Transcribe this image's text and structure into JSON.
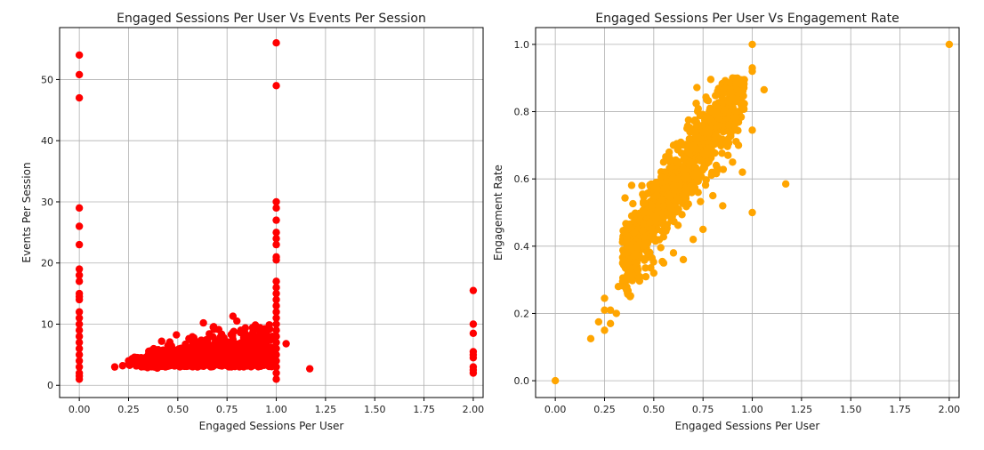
{
  "chart_data": [
    {
      "type": "scatter",
      "title": "Engaged Sessions Per User Vs Events Per Session",
      "xlabel": "Engaged Sessions Per User",
      "ylabel": "Events Per Session",
      "xlim": [
        -0.1,
        2.05
      ],
      "ylim": [
        -2,
        58.5
      ],
      "xticks": [
        0.0,
        0.25,
        0.5,
        0.75,
        1.0,
        1.25,
        1.5,
        1.75,
        2.0
      ],
      "xtick_labels": [
        "0.00",
        "0.25",
        "0.50",
        "0.75",
        "1.00",
        "1.25",
        "1.50",
        "1.75",
        "2.00"
      ],
      "yticks": [
        0,
        10,
        20,
        30,
        40,
        50
      ],
      "ytick_labels": [
        "0",
        "10",
        "20",
        "30",
        "40",
        "50"
      ],
      "grid": true,
      "color": "#ff0000",
      "points": [
        [
          0,
          54.0
        ],
        [
          0,
          50.8
        ],
        [
          0,
          47.0
        ],
        [
          0,
          29.0
        ],
        [
          0,
          26.0
        ],
        [
          0,
          23.0
        ],
        [
          0,
          19.0
        ],
        [
          0,
          18.0
        ],
        [
          0,
          17.0
        ],
        [
          0,
          15.0
        ],
        [
          0,
          14.5
        ],
        [
          0,
          14.0
        ],
        [
          0,
          12.0
        ],
        [
          0,
          11.0
        ],
        [
          0,
          10.0
        ],
        [
          0,
          9.0
        ],
        [
          0,
          8.0
        ],
        [
          0,
          7.0
        ],
        [
          0,
          6.0
        ],
        [
          0,
          5.0
        ],
        [
          0,
          4.0
        ],
        [
          0,
          3.0
        ],
        [
          0,
          2.0
        ],
        [
          0,
          1.5
        ],
        [
          0,
          1.0
        ],
        [
          1,
          56.0
        ],
        [
          1,
          49.0
        ],
        [
          1,
          30.0
        ],
        [
          1,
          29.0
        ],
        [
          1,
          27.0
        ],
        [
          1,
          25.0
        ],
        [
          1,
          24.0
        ],
        [
          1,
          23.0
        ],
        [
          1,
          21.0
        ],
        [
          1,
          20.5
        ],
        [
          1,
          17.0
        ],
        [
          1,
          16.0
        ],
        [
          1,
          15.0
        ],
        [
          1,
          14.0
        ],
        [
          1,
          13.0
        ],
        [
          1,
          12.0
        ],
        [
          1,
          11.0
        ],
        [
          1,
          10.0
        ],
        [
          1,
          9.0
        ],
        [
          1,
          8.0
        ],
        [
          1,
          7.0
        ],
        [
          1,
          6.0
        ],
        [
          1,
          5.0
        ],
        [
          1,
          4.0
        ],
        [
          1,
          3.0
        ],
        [
          1,
          2.0
        ],
        [
          1,
          1.0
        ],
        [
          2,
          15.5
        ],
        [
          2,
          10.0
        ],
        [
          2,
          8.5
        ],
        [
          2,
          5.5
        ],
        [
          2,
          5.0
        ],
        [
          2,
          4.5
        ],
        [
          2,
          3.0
        ],
        [
          2,
          2.5
        ],
        [
          2,
          2.0
        ],
        [
          0.18,
          3.0
        ],
        [
          0.22,
          3.2
        ],
        [
          0.25,
          4.0
        ],
        [
          0.28,
          3.5
        ],
        [
          0.3,
          4.5
        ],
        [
          0.35,
          5.0
        ],
        [
          0.38,
          3.0
        ],
        [
          0.42,
          4.0
        ],
        [
          0.45,
          6.5
        ],
        [
          0.48,
          3.5
        ],
        [
          0.5,
          5.5
        ],
        [
          0.55,
          4.0
        ],
        [
          0.58,
          6.0
        ],
        [
          0.6,
          3.0
        ],
        [
          0.63,
          10.2
        ],
        [
          0.65,
          7.5
        ],
        [
          0.68,
          9.5
        ],
        [
          0.7,
          5.0
        ],
        [
          0.72,
          8.0
        ],
        [
          0.75,
          4.0
        ],
        [
          0.78,
          11.3
        ],
        [
          0.8,
          10.5
        ],
        [
          0.82,
          9.0
        ],
        [
          0.85,
          7.0
        ],
        [
          0.88,
          8.5
        ],
        [
          0.9,
          6.0
        ],
        [
          0.93,
          9.0
        ],
        [
          0.95,
          5.0
        ],
        [
          0.98,
          8.0
        ],
        [
          1.05,
          6.8
        ],
        [
          1.17,
          2.7
        ]
      ],
      "dense_cluster": {
        "note": "dense band of points",
        "x_range": [
          0.35,
          0.98
        ],
        "y_range": [
          2.5,
          7.5
        ],
        "peak_y_range": [
          3.0,
          10.0
        ]
      }
    },
    {
      "type": "scatter",
      "title": "Engaged Sessions Per User Vs Engagement Rate",
      "xlabel": "Engaged Sessions Per User",
      "ylabel": "Engagement Rate",
      "xlim": [
        -0.1,
        2.05
      ],
      "ylim": [
        -0.05,
        1.05
      ],
      "xticks": [
        0.0,
        0.25,
        0.5,
        0.75,
        1.0,
        1.25,
        1.5,
        1.75,
        2.0
      ],
      "xtick_labels": [
        "0.00",
        "0.25",
        "0.50",
        "0.75",
        "1.00",
        "1.25",
        "1.50",
        "1.75",
        "2.00"
      ],
      "yticks": [
        0.0,
        0.2,
        0.4,
        0.6,
        0.8,
        1.0
      ],
      "ytick_labels": [
        "0.0",
        "0.2",
        "0.4",
        "0.6",
        "0.8",
        "1.0"
      ],
      "grid": true,
      "color": "#ffa500",
      "points": [
        [
          0,
          0.0
        ],
        [
          2.0,
          1.0
        ],
        [
          1.0,
          1.0
        ],
        [
          1.0,
          0.92
        ],
        [
          1.0,
          0.93
        ],
        [
          1.06,
          0.865
        ],
        [
          1.0,
          0.745
        ],
        [
          1.0,
          0.5
        ],
        [
          1.17,
          0.585
        ],
        [
          0.18,
          0.125
        ],
        [
          0.22,
          0.175
        ],
        [
          0.25,
          0.15
        ],
        [
          0.25,
          0.21
        ],
        [
          0.25,
          0.245
        ],
        [
          0.28,
          0.17
        ],
        [
          0.28,
          0.21
        ],
        [
          0.31,
          0.2
        ],
        [
          0.32,
          0.28
        ],
        [
          0.35,
          0.3
        ],
        [
          0.38,
          0.25
        ],
        [
          0.4,
          0.37
        ],
        [
          0.42,
          0.33
        ],
        [
          0.45,
          0.4
        ],
        [
          0.48,
          0.47
        ],
        [
          0.5,
          0.44
        ],
        [
          0.52,
          0.5
        ],
        [
          0.55,
          0.52
        ],
        [
          0.58,
          0.55
        ],
        [
          0.6,
          0.58
        ],
        [
          0.62,
          0.6
        ],
        [
          0.65,
          0.63
        ],
        [
          0.68,
          0.68
        ],
        [
          0.7,
          0.7
        ],
        [
          0.72,
          0.72
        ],
        [
          0.75,
          0.74
        ],
        [
          0.78,
          0.78
        ],
        [
          0.8,
          0.8
        ],
        [
          0.82,
          0.82
        ],
        [
          0.85,
          0.84
        ],
        [
          0.88,
          0.83
        ],
        [
          0.9,
          0.9
        ],
        [
          0.92,
          0.89
        ],
        [
          0.95,
          0.88
        ],
        [
          0.8,
          0.55
        ],
        [
          0.85,
          0.52
        ],
        [
          0.75,
          0.45
        ],
        [
          0.7,
          0.42
        ],
        [
          0.65,
          0.36
        ],
        [
          0.6,
          0.38
        ],
        [
          0.55,
          0.35
        ],
        [
          0.5,
          0.32
        ],
        [
          0.9,
          0.65
        ],
        [
          0.93,
          0.7
        ],
        [
          0.95,
          0.62
        ],
        [
          0.6,
          0.7
        ],
        [
          0.55,
          0.65
        ],
        [
          0.5,
          0.58
        ],
        [
          0.45,
          0.5
        ],
        [
          0.4,
          0.44
        ],
        [
          0.35,
          0.38
        ],
        [
          0.88,
          0.76
        ]
      ],
      "dense_cluster": {
        "note": "dense diagonal band of points",
        "x_range": [
          0.32,
          0.97
        ],
        "y_range": [
          0.27,
          0.85
        ]
      }
    }
  ]
}
